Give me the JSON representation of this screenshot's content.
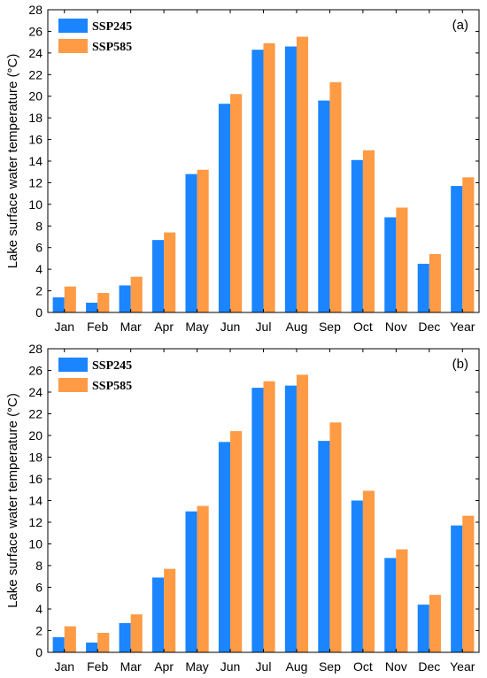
{
  "chart_data": [
    {
      "type": "bar",
      "panel_label": "(a)",
      "ylabel_main": "Lake surface water temperature (",
      "ylabel_unit": "°C)",
      "ylim": [
        0,
        28
      ],
      "yticks": [
        "0",
        "2",
        "4",
        "6",
        "8",
        "10",
        "12",
        "14",
        "16",
        "18",
        "20",
        "22",
        "24",
        "26",
        "28"
      ],
      "categories": [
        "Jan",
        "Feb",
        "Mar",
        "Apr",
        "May",
        "Jun",
        "Jul",
        "Aug",
        "Sep",
        "Oct",
        "Nov",
        "Dec",
        "Year"
      ],
      "legend_position": "top-left",
      "series": [
        {
          "name": "SSP245",
          "color": "#1a85ff",
          "values": [
            1.4,
            0.9,
            2.5,
            6.7,
            12.8,
            19.3,
            24.3,
            24.6,
            19.6,
            14.1,
            8.8,
            4.5,
            11.7
          ]
        },
        {
          "name": "SSP585",
          "color": "#ff9a45",
          "values": [
            2.4,
            1.8,
            3.3,
            7.4,
            13.2,
            20.2,
            24.9,
            25.5,
            21.3,
            15.0,
            9.7,
            5.4,
            12.5
          ]
        }
      ]
    },
    {
      "type": "bar",
      "panel_label": "(b)",
      "ylabel_main": "Lake surface water temperature (",
      "ylabel_unit": "°C)",
      "ylim": [
        0,
        28
      ],
      "yticks": [
        "0",
        "2",
        "4",
        "6",
        "8",
        "10",
        "12",
        "14",
        "16",
        "18",
        "20",
        "22",
        "24",
        "26",
        "28"
      ],
      "categories": [
        "Jan",
        "Feb",
        "Mar",
        "Apr",
        "May",
        "Jun",
        "Jul",
        "Aug",
        "Sep",
        "Oct",
        "Nov",
        "Dec",
        "Year"
      ],
      "legend_position": "top-left",
      "series": [
        {
          "name": "SSP245",
          "color": "#1a85ff",
          "values": [
            1.4,
            0.9,
            2.7,
            6.9,
            13.0,
            19.4,
            24.4,
            24.6,
            19.5,
            14.0,
            8.7,
            4.4,
            11.7
          ]
        },
        {
          "name": "SSP585",
          "color": "#ff9a45",
          "values": [
            2.4,
            1.8,
            3.5,
            7.7,
            13.5,
            20.4,
            25.0,
            25.6,
            21.2,
            14.9,
            9.5,
            5.3,
            12.6
          ]
        }
      ]
    }
  ]
}
